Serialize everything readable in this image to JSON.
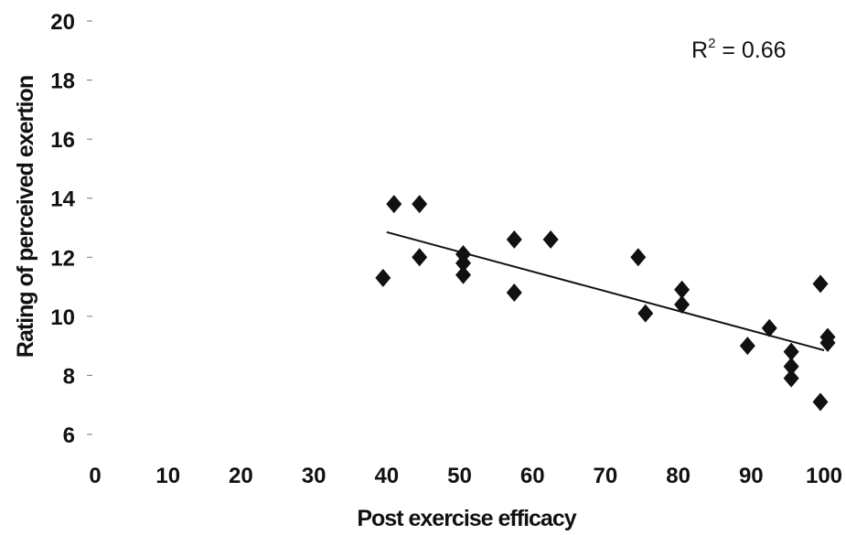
{
  "chart_data": {
    "type": "scatter",
    "xlabel": "Post exercise efficacy",
    "ylabel": "Rating of perceived exertion",
    "xlim": [
      0,
      100
    ],
    "ylim": [
      6,
      20
    ],
    "xticks": [
      "0",
      "10",
      "20",
      "30",
      "40",
      "50",
      "60",
      "70",
      "80",
      "90",
      "100"
    ],
    "yticks": [
      "6",
      "8",
      "10",
      "12",
      "14",
      "16",
      "18",
      "20"
    ],
    "grid": false,
    "annotation": {
      "base": "R",
      "exponent": "2",
      "rest": " = 0.66"
    },
    "points": [
      {
        "x": 39.5,
        "y": 11.3
      },
      {
        "x": 41,
        "y": 13.8
      },
      {
        "x": 44.5,
        "y": 13.8
      },
      {
        "x": 44.5,
        "y": 12.0
      },
      {
        "x": 50.5,
        "y": 12.1
      },
      {
        "x": 50.5,
        "y": 11.8
      },
      {
        "x": 50.5,
        "y": 11.4
      },
      {
        "x": 57.5,
        "y": 12.6
      },
      {
        "x": 57.5,
        "y": 10.8
      },
      {
        "x": 62.5,
        "y": 12.6
      },
      {
        "x": 74.5,
        "y": 12.0
      },
      {
        "x": 75.5,
        "y": 10.1
      },
      {
        "x": 80.5,
        "y": 10.9
      },
      {
        "x": 80.5,
        "y": 10.4
      },
      {
        "x": 89.5,
        "y": 9.0
      },
      {
        "x": 92.5,
        "y": 9.6
      },
      {
        "x": 95.5,
        "y": 8.8
      },
      {
        "x": 95.5,
        "y": 8.3
      },
      {
        "x": 95.5,
        "y": 7.9
      },
      {
        "x": 99.5,
        "y": 11.1
      },
      {
        "x": 99.5,
        "y": 7.1
      },
      {
        "x": 100.5,
        "y": 9.3
      },
      {
        "x": 100.5,
        "y": 9.1
      }
    ],
    "trendline": {
      "x": [
        40,
        100
      ],
      "y": [
        12.85,
        8.85
      ]
    },
    "marker_color": "#111111",
    "line_color": "#111111"
  }
}
